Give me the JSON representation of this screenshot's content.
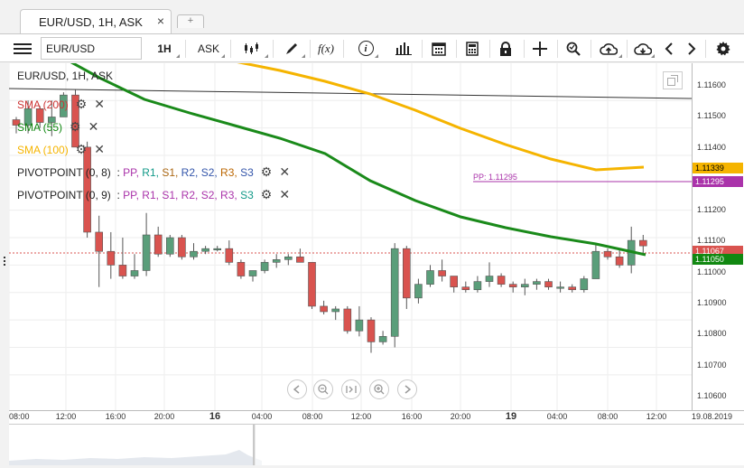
{
  "tab": {
    "title": "EUR/USD, 1H, ASK",
    "close": "×",
    "add": "+"
  },
  "toolbar": {
    "symbol": "EUR/USD",
    "timeframe": "1H",
    "price_type": "ASK",
    "fx_label": "f(x)",
    "info_label": "i"
  },
  "chart_header": {
    "title": "EUR/USD, 1H, ASK"
  },
  "indicators": [
    {
      "name": "SMA (200)",
      "color": "#cc3333"
    },
    {
      "name": "SMA (55)",
      "color": "#118811"
    },
    {
      "name": "SMA (100)",
      "color": "#f5b400"
    },
    {
      "name": "PIVOTPOINT (0, 8)",
      "params": [
        "PP",
        "R1",
        "S1",
        "R2",
        "S2",
        "R3",
        "S3"
      ],
      "param_colors": [
        "#aa33aa",
        "#119988",
        "#aa6611",
        "#3355aa",
        "#3355aa",
        "#bb6600",
        "#3355aa"
      ]
    },
    {
      "name": "PIVOTPOINT (0, 9)",
      "params": [
        "PP",
        "R1",
        "S1",
        "R2",
        "S2",
        "R3",
        "S3"
      ],
      "param_colors": [
        "#aa33aa",
        "#aa33aa",
        "#aa33aa",
        "#aa33aa",
        "#aa33aa",
        "#aa33aa",
        "#119988"
      ]
    }
  ],
  "pivot_label": "PP: 1.11295",
  "price_axis": {
    "labels": [
      "1.11600",
      "1.11500",
      "1.11400",
      "1.11200",
      "1.11100",
      "1.11000",
      "1.10900",
      "1.10800",
      "1.10700",
      "1.10600"
    ],
    "tags": [
      {
        "text": "1.11339",
        "bg": "#f5b400",
        "fg": "#000"
      },
      {
        "text": "1.11295",
        "bg": "#aa33aa",
        "fg": "#fff"
      },
      {
        "text": "1.11067",
        "bg": "#d9534f",
        "fg": "#fff"
      },
      {
        "text": "1.11050",
        "bg": "#118811",
        "fg": "#fff"
      }
    ]
  },
  "time_axis": {
    "labels": [
      "08:00",
      "12:00",
      "16:00",
      "20:00",
      "16",
      "04:00",
      "08:00",
      "12:00",
      "16:00",
      "20:00",
      "19",
      "04:00",
      "08:00",
      "12:00",
      "19.08.2019"
    ]
  },
  "colors": {
    "bull": "#5a9e7a",
    "bear": "#d9534f",
    "sma55": "#1a8a1a",
    "sma100": "#f5b400",
    "sma200": "#333333",
    "pivot": "#aa33aa"
  },
  "chart_data": {
    "type": "candlestick",
    "title": "EUR/USD, 1H, ASK",
    "x_labels": [
      "08:00",
      "12:00",
      "16:00",
      "20:00",
      "16",
      "04:00",
      "08:00",
      "12:00",
      "16:00",
      "20:00",
      "19",
      "04:00",
      "08:00",
      "12:00"
    ],
    "ylim": [
      1.1055,
      1.1167
    ],
    "candles": [
      [
        1.1153,
        1.1154,
        1.1148,
        1.1151
      ],
      [
        1.1151,
        1.116,
        1.1148,
        1.1157
      ],
      [
        1.1157,
        1.1158,
        1.115,
        1.1152
      ],
      [
        1.1152,
        1.116,
        1.1147,
        1.1154
      ],
      [
        1.1154,
        1.1163,
        1.1154,
        1.1162
      ],
      [
        1.1162,
        1.1164,
        1.1143,
        1.1143
      ],
      [
        1.1143,
        1.1145,
        1.111,
        1.1112
      ],
      [
        1.1112,
        1.1118,
        1.1092,
        1.1105
      ],
      [
        1.1105,
        1.1112,
        1.1095,
        1.11
      ],
      [
        1.11,
        1.111,
        1.1095,
        1.1096
      ],
      [
        1.1096,
        1.1104,
        1.1095,
        1.1098
      ],
      [
        1.1098,
        1.1119,
        1.1096,
        1.1111
      ],
      [
        1.1111,
        1.1114,
        1.1103,
        1.1104
      ],
      [
        1.1104,
        1.1111,
        1.1103,
        1.111
      ],
      [
        1.111,
        1.1111,
        1.1102,
        1.1103
      ],
      [
        1.1103,
        1.1108,
        1.1102,
        1.1105
      ],
      [
        1.1105,
        1.1107,
        1.1104,
        1.1106
      ],
      [
        1.1106,
        1.1107,
        1.1105,
        1.1106
      ],
      [
        1.1106,
        1.1109,
        1.11,
        1.1101
      ],
      [
        1.1101,
        1.1102,
        1.1095,
        1.1096
      ],
      [
        1.1096,
        1.1098,
        1.1094,
        1.1098
      ],
      [
        1.1098,
        1.1102,
        1.1097,
        1.1101
      ],
      [
        1.1101,
        1.1104,
        1.1099,
        1.1102
      ],
      [
        1.1102,
        1.1104,
        1.11,
        1.1103
      ],
      [
        1.1103,
        1.1106,
        1.1101,
        1.1101
      ],
      [
        1.1101,
        1.1101,
        1.1084,
        1.1085
      ],
      [
        1.1085,
        1.1087,
        1.1082,
        1.1083
      ],
      [
        1.1083,
        1.1085,
        1.108,
        1.1084
      ],
      [
        1.1084,
        1.1085,
        1.1075,
        1.1076
      ],
      [
        1.1076,
        1.1085,
        1.1074,
        1.108
      ],
      [
        1.108,
        1.1081,
        1.1068,
        1.1072
      ],
      [
        1.1072,
        1.1076,
        1.1071,
        1.1074
      ],
      [
        1.1074,
        1.1108,
        1.107,
        1.1106
      ],
      [
        1.1106,
        1.1107,
        1.1084,
        1.1088
      ],
      [
        1.1088,
        1.1095,
        1.1086,
        1.1093
      ],
      [
        1.1093,
        1.11,
        1.1092,
        1.1098
      ],
      [
        1.1098,
        1.1102,
        1.1094,
        1.1096
      ],
      [
        1.1096,
        1.1096,
        1.109,
        1.1092
      ],
      [
        1.1092,
        1.1094,
        1.109,
        1.1091
      ],
      [
        1.1091,
        1.1096,
        1.109,
        1.1094
      ],
      [
        1.1094,
        1.1101,
        1.1092,
        1.1096
      ],
      [
        1.1096,
        1.1097,
        1.1092,
        1.1093
      ],
      [
        1.1093,
        1.1094,
        1.109,
        1.1092
      ],
      [
        1.1092,
        1.1095,
        1.1089,
        1.1093
      ],
      [
        1.1093,
        1.1095,
        1.1091,
        1.1094
      ],
      [
        1.1094,
        1.1095,
        1.1091,
        1.1092
      ],
      [
        1.1092,
        1.1094,
        1.109,
        1.1092
      ],
      [
        1.1092,
        1.1093,
        1.109,
        1.1091
      ],
      [
        1.1091,
        1.1096,
        1.109,
        1.1095
      ],
      [
        1.1095,
        1.1108,
        1.1095,
        1.1105
      ],
      [
        1.1105,
        1.1106,
        1.1102,
        1.1103
      ],
      [
        1.1103,
        1.1106,
        1.1099,
        1.11
      ],
      [
        1.11,
        1.1114,
        1.1097,
        1.1109
      ],
      [
        1.1109,
        1.1111,
        1.1104,
        1.1107
      ]
    ],
    "sma55": [
      1.117,
      1.1166,
      1.1162,
      1.1158,
      1.1154,
      1.115,
      1.1146,
      1.1143,
      1.114,
      1.1137,
      1.1134,
      1.1132,
      1.113,
      1.1128,
      1.1126,
      1.1124,
      1.1122,
      1.112,
      1.1118,
      1.1116,
      1.1115,
      1.1114,
      1.1113,
      1.1112,
      1.1111,
      1.111,
      1.1109,
      1.1108,
      1.1107,
      1.1106,
      1.1105
    ],
    "sma100": [
      1.118,
      1.1175,
      1.1168,
      1.1162,
      1.1158,
      1.1154,
      1.115,
      1.1146,
      1.1143,
      1.114,
      1.1137,
      1.1134
    ],
    "sma200": [
      1.116,
      1.1158,
      1.1156
    ],
    "pivot_pp": 1.11295
  }
}
